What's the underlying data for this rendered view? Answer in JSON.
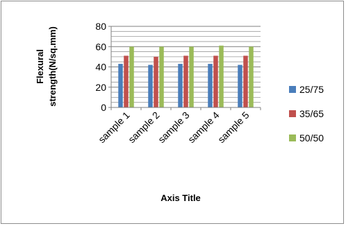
{
  "chart_data": {
    "type": "bar",
    "categories": [
      "sample 1",
      "sample 2",
      "sample 3",
      "sample 4",
      "sample 5"
    ],
    "series": [
      {
        "name": "25/75",
        "color": "#4a7ebb",
        "values": [
          43,
          42,
          43,
          43,
          42
        ]
      },
      {
        "name": "35/65",
        "color": "#c0504d",
        "values": [
          51,
          50,
          51,
          51,
          51
        ]
      },
      {
        "name": "50/50",
        "color": "#9bbb59",
        "values": [
          60,
          60,
          60,
          61,
          60
        ]
      }
    ],
    "ylim": [
      0,
      80
    ],
    "yticks": [
      "0",
      "20",
      "40",
      "60",
      "80"
    ],
    "ylabel_line1": "Flexural",
    "ylabel_line2": "strength(N/sq.mm)",
    "xlabel": "Axis Title",
    "grid": true,
    "legend_position": "right"
  }
}
